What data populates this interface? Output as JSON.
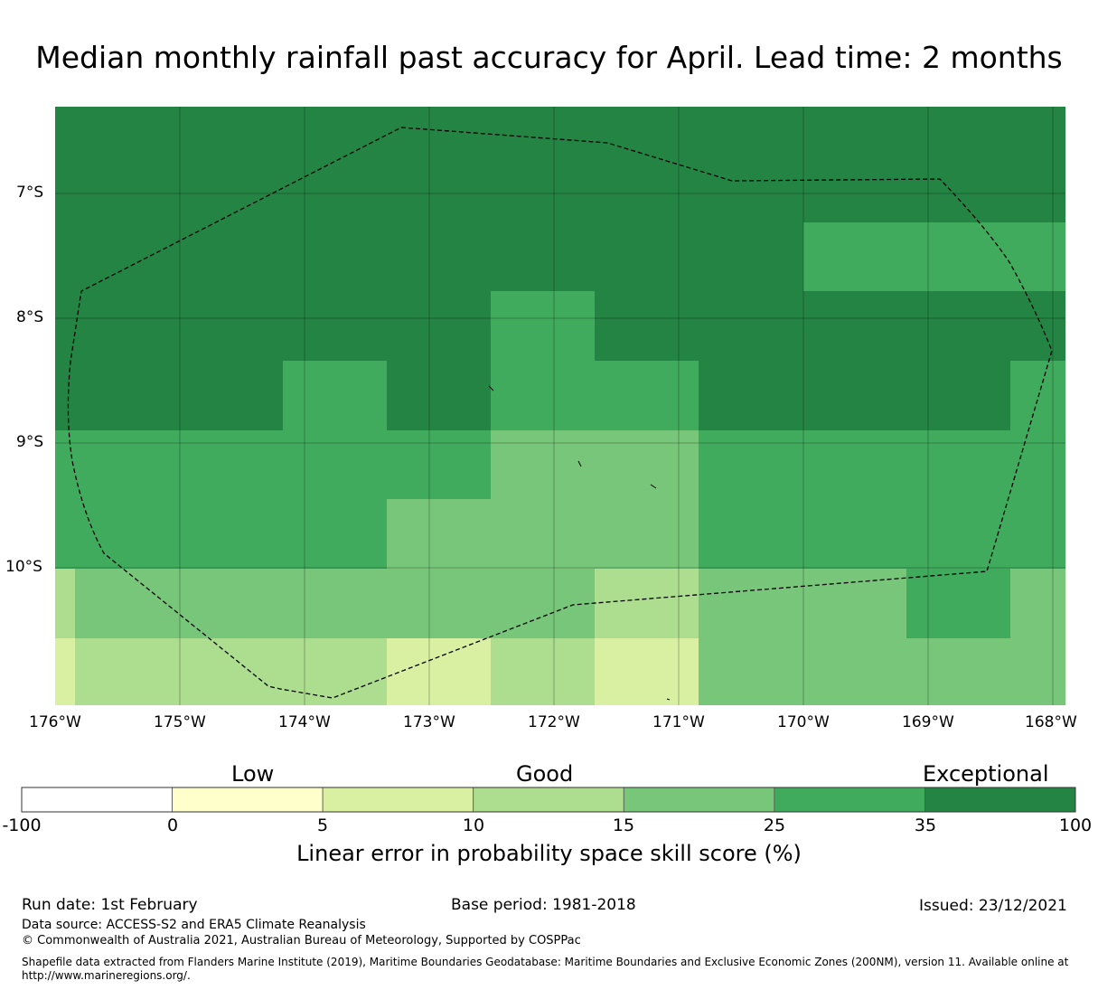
{
  "title": "Median monthly rainfall past accuracy for April. Lead time: 2 months",
  "map": {
    "lat_labels": [
      "7°S",
      "8°S",
      "9°S",
      "10°S"
    ],
    "lon_labels": [
      "176°W",
      "175°W",
      "174°W",
      "173°W",
      "172°W",
      "171°W",
      "170°W",
      "169°W",
      "168°W"
    ],
    "lat_range": [
      -11.15,
      -6.3
    ],
    "lon_range": [
      -176,
      -167.9
    ]
  },
  "colorbar": {
    "categories": [
      "Low",
      "Good",
      "Exceptional"
    ],
    "ticks": [
      "-100",
      "0",
      "5",
      "10",
      "15",
      "25",
      "35",
      "100"
    ],
    "colors": [
      "#ffffff",
      "#ffffcc",
      "#d9f0a3",
      "#addd8e",
      "#78c679",
      "#41ab5d",
      "#238443"
    ],
    "title": "Linear error in probability space skill score (%)"
  },
  "footer": {
    "run_date": "Run date: 1st February",
    "base_period": "Base period: 1981-2018",
    "issued": "Issued: 23/12/2021",
    "data_source": "Data source: ACCESS-S2 and ERA5 Climate Reanalysis",
    "copyright": "© Commonwealth of Australia 2021, Australian Bureau of Meteorology, Supported by COSPPac",
    "shapefile_line1": "Shapefile data extracted from Flanders Marine Institute (2019), Maritime Boundaries Geodatabase: Maritime Boundaries and Exclusive Economic Zones (200NM), version 11. Available online at",
    "shapefile_line2": "http://www.marineregions.org/."
  }
}
